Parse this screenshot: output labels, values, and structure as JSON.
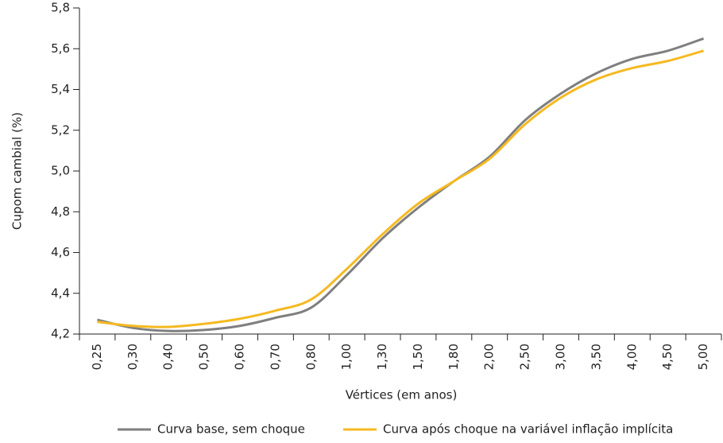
{
  "chart_data": {
    "type": "line",
    "y_label": "Cupom cambial (%)",
    "x_label": "Vértices (em anos)",
    "categories": [
      "0,25",
      "0,30",
      "0,40",
      "0,50",
      "0,60",
      "0,70",
      "0,80",
      "1,00",
      "1,30",
      "1,50",
      "1,80",
      "2,00",
      "2,50",
      "3,00",
      "3,50",
      "4,00",
      "4,50",
      "5,00"
    ],
    "series": [
      {
        "name": "Curva base, sem choque",
        "color": "#7f7f7f",
        "values": [
          4.27,
          4.23,
          4.215,
          4.22,
          4.24,
          4.28,
          4.33,
          4.49,
          4.67,
          4.82,
          4.95,
          5.07,
          5.25,
          5.38,
          5.48,
          5.55,
          5.59,
          5.65
        ]
      },
      {
        "name": "Curva após choque na variável inflação implícita",
        "color": "#f5b921",
        "values": [
          4.26,
          4.24,
          4.235,
          4.25,
          4.275,
          4.315,
          4.37,
          4.52,
          4.69,
          4.84,
          4.95,
          5.06,
          5.23,
          5.36,
          5.45,
          5.505,
          5.54,
          5.59
        ]
      }
    ],
    "ylim": [
      4.2,
      5.8
    ],
    "yticks": [
      {
        "value": 4.2,
        "label": "4,2"
      },
      {
        "value": 4.4,
        "label": "4,4"
      },
      {
        "value": 4.6,
        "label": "4,6"
      },
      {
        "value": 4.8,
        "label": "4,8"
      },
      {
        "value": 5.0,
        "label": "5,0"
      },
      {
        "value": 5.2,
        "label": "5,2"
      },
      {
        "value": 5.4,
        "label": "5,4"
      },
      {
        "value": 5.6,
        "label": "5,6"
      },
      {
        "value": 5.8,
        "label": "5,8"
      }
    ]
  }
}
